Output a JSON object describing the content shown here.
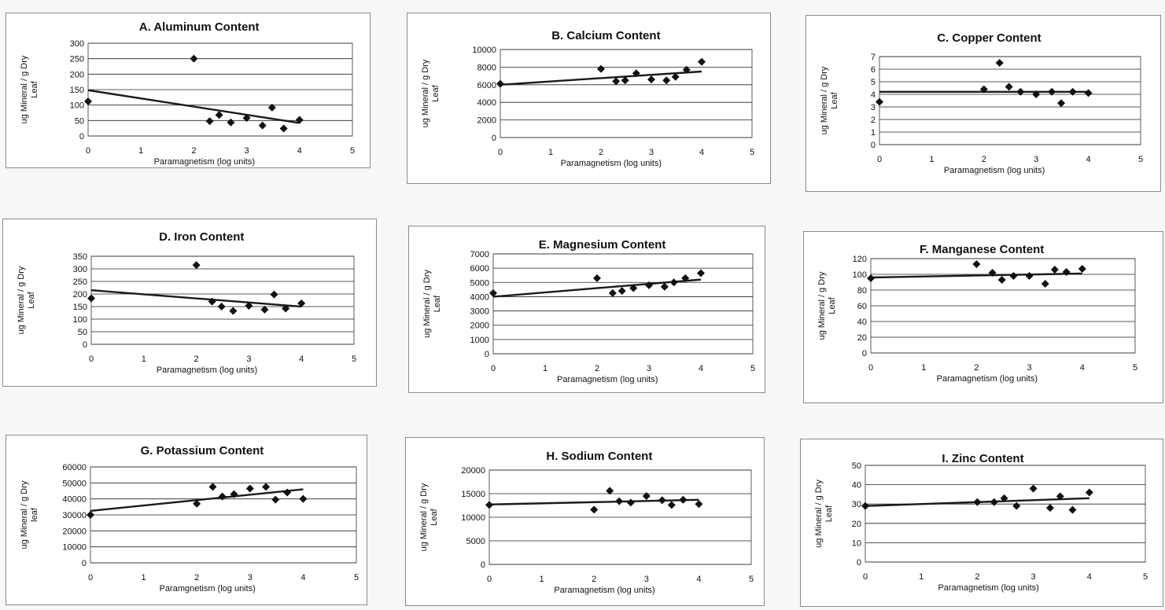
{
  "chart_data": [
    {
      "type": "scatter",
      "title": "A.  Aluminum Content",
      "xlabel": "Paramagnetism (log units)",
      "ylabel": [
        "ug Mineral / g Dry",
        "Leaf"
      ],
      "xlim": [
        0,
        5
      ],
      "ylim": [
        0,
        300
      ],
      "xticks": [
        "0",
        "1",
        "2",
        "3",
        "4",
        "5"
      ],
      "yticks": [
        "0",
        "50",
        "100",
        "150",
        "200",
        "250",
        "300"
      ],
      "points": [
        [
          0,
          112
        ],
        [
          2,
          250
        ],
        [
          2.3,
          48
        ],
        [
          2.48,
          68
        ],
        [
          2.7,
          44
        ],
        [
          3,
          58
        ],
        [
          3.3,
          34
        ],
        [
          3.48,
          92
        ],
        [
          3.7,
          24
        ],
        [
          4,
          52
        ]
      ],
      "trend": [
        [
          0,
          148
        ],
        [
          4,
          42
        ]
      ]
    },
    {
      "type": "scatter",
      "title": "B.  Calcium Content",
      "xlabel": "Paramagnetism (log units)",
      "ylabel": [
        "ug Mineral / g Dry",
        "Leaf"
      ],
      "xlim": [
        0,
        5
      ],
      "ylim": [
        0,
        10000
      ],
      "xticks": [
        "0",
        "1",
        "2",
        "3",
        "4",
        "5"
      ],
      "yticks": [
        "0",
        "2000",
        "4000",
        "6000",
        "8000",
        "10000"
      ],
      "points": [
        [
          0,
          6100
        ],
        [
          2,
          7800
        ],
        [
          2.3,
          6400
        ],
        [
          2.48,
          6500
        ],
        [
          2.7,
          7300
        ],
        [
          3,
          6600
        ],
        [
          3.3,
          6500
        ],
        [
          3.48,
          6900
        ],
        [
          3.7,
          7700
        ],
        [
          4,
          8600
        ]
      ],
      "trend": [
        [
          0,
          6000
        ],
        [
          4,
          7500
        ]
      ]
    },
    {
      "type": "scatter",
      "title": "C. Copper Content",
      "xlabel": "Paramagnetism (log units)",
      "ylabel": [
        "ug Mineral / g Dry",
        "Leaf"
      ],
      "xlim": [
        0,
        5
      ],
      "ylim": [
        0,
        7
      ],
      "xticks": [
        "0",
        "1",
        "2",
        "3",
        "4",
        "5"
      ],
      "yticks": [
        "0",
        "1",
        "2",
        "3",
        "4",
        "5",
        "6",
        "7"
      ],
      "points": [
        [
          0,
          3.4
        ],
        [
          2,
          4.4
        ],
        [
          2.3,
          6.5
        ],
        [
          2.48,
          4.6
        ],
        [
          2.7,
          4.2
        ],
        [
          3,
          4.0
        ],
        [
          3.3,
          4.2
        ],
        [
          3.48,
          3.3
        ],
        [
          3.7,
          4.2
        ],
        [
          4,
          4.1
        ]
      ],
      "trend": [
        [
          0,
          4.2
        ],
        [
          4,
          4.2
        ]
      ]
    },
    {
      "type": "scatter",
      "title": "D.  Iron Content",
      "xlabel": "Paramagnetism (log units)",
      "ylabel": [
        "ug Mineral / g Dry",
        "Leaf"
      ],
      "xlim": [
        0,
        5
      ],
      "ylim": [
        0,
        350
      ],
      "xticks": [
        "0",
        "1",
        "2",
        "3",
        "4",
        "5"
      ],
      "yticks": [
        "0",
        "50",
        "100",
        "150",
        "200",
        "250",
        "300",
        "350"
      ],
      "points": [
        [
          0,
          183
        ],
        [
          2,
          315
        ],
        [
          2.3,
          170
        ],
        [
          2.48,
          150
        ],
        [
          2.7,
          133
        ],
        [
          3,
          153
        ],
        [
          3.3,
          138
        ],
        [
          3.48,
          198
        ],
        [
          3.7,
          142
        ],
        [
          4,
          163
        ]
      ],
      "trend": [
        [
          0,
          215
        ],
        [
          4,
          150
        ]
      ]
    },
    {
      "type": "scatter",
      "title": "E. Magnesium Content",
      "xlabel": "Paramagnetism (log units)",
      "ylabel": [
        "ug Mineral / g Dry",
        "Leaf"
      ],
      "xlim": [
        0,
        5
      ],
      "ylim": [
        0,
        7000
      ],
      "xticks": [
        "0",
        "1",
        "2",
        "3",
        "4",
        "5"
      ],
      "yticks": [
        "0",
        "1000",
        "2000",
        "3000",
        "4000",
        "5000",
        "6000",
        "7000"
      ],
      "points": [
        [
          0,
          4250
        ],
        [
          2,
          5300
        ],
        [
          2.3,
          4250
        ],
        [
          2.48,
          4400
        ],
        [
          2.7,
          4600
        ],
        [
          3,
          4800
        ],
        [
          3.3,
          4700
        ],
        [
          3.48,
          5000
        ],
        [
          3.7,
          5300
        ],
        [
          4,
          5650
        ]
      ],
      "trend": [
        [
          0,
          4000
        ],
        [
          4,
          5200
        ]
      ]
    },
    {
      "type": "scatter",
      "title": "F. Manganese Content",
      "xlabel": "Paramagnetism (log units)",
      "ylabel": [
        "ug Mineral / g Dry",
        "Leaf"
      ],
      "xlim": [
        0,
        5
      ],
      "ylim": [
        0,
        120
      ],
      "xticks": [
        "0",
        "1",
        "2",
        "3",
        "4",
        "5"
      ],
      "yticks": [
        "0",
        "20",
        "40",
        "60",
        "80",
        "100",
        "120"
      ],
      "points": [
        [
          0,
          95
        ],
        [
          2,
          113
        ],
        [
          2.3,
          102
        ],
        [
          2.48,
          93
        ],
        [
          2.7,
          98
        ],
        [
          3,
          98
        ],
        [
          3.3,
          88
        ],
        [
          3.48,
          106
        ],
        [
          3.7,
          103
        ],
        [
          4,
          107
        ]
      ],
      "trend": [
        [
          0,
          96
        ],
        [
          4,
          101
        ]
      ]
    },
    {
      "type": "scatter",
      "title": "G. Potassium Content",
      "xlabel": "Paramgnetism (log units)",
      "ylabel": [
        "ug Mineral / g Dry",
        "leaf"
      ],
      "xlim": [
        0,
        5
      ],
      "ylim": [
        0,
        60000
      ],
      "xticks": [
        "0",
        "1",
        "2",
        "3",
        "4",
        "5"
      ],
      "yticks": [
        "0",
        "10000",
        "20000",
        "30000",
        "40000",
        "50000",
        "60000"
      ],
      "points": [
        [
          0,
          30000
        ],
        [
          2,
          37000
        ],
        [
          2.3,
          47500
        ],
        [
          2.48,
          41500
        ],
        [
          2.7,
          43000
        ],
        [
          3,
          46500
        ],
        [
          3.3,
          47500
        ],
        [
          3.48,
          39500
        ],
        [
          3.7,
          44000
        ],
        [
          4,
          40000
        ]
      ],
      "trend": [
        [
          0,
          32500
        ],
        [
          4,
          46000
        ]
      ]
    },
    {
      "type": "scatter",
      "title": "H. Sodium Content",
      "xlabel": "Paramagnetism (log units)",
      "ylabel": [
        "ug Mineral / g Dry",
        "Leaf"
      ],
      "xlim": [
        0,
        5
      ],
      "ylim": [
        0,
        20000
      ],
      "xticks": [
        "0",
        "1",
        "2",
        "3",
        "4",
        "5"
      ],
      "yticks": [
        "0",
        "5000",
        "10000",
        "15000",
        "20000"
      ],
      "points": [
        [
          0,
          12600
        ],
        [
          2,
          11600
        ],
        [
          2.3,
          15600
        ],
        [
          2.48,
          13400
        ],
        [
          2.7,
          13100
        ],
        [
          3,
          14500
        ],
        [
          3.3,
          13600
        ],
        [
          3.48,
          12600
        ],
        [
          3.7,
          13700
        ],
        [
          4,
          12800
        ]
      ],
      "trend": [
        [
          0,
          12700
        ],
        [
          4,
          13700
        ]
      ]
    },
    {
      "type": "scatter",
      "title": "I. Zinc Content",
      "xlabel": "Paramagnetism (log units)",
      "ylabel": [
        "ug Mineral / g Dry",
        "Leaf"
      ],
      "xlim": [
        0,
        5
      ],
      "ylim": [
        0,
        50
      ],
      "xticks": [
        "0",
        "1",
        "2",
        "3",
        "4",
        "5"
      ],
      "yticks": [
        "0",
        "10",
        "20",
        "30",
        "40",
        "50"
      ],
      "points": [
        [
          0,
          29
        ],
        [
          2,
          31
        ],
        [
          2.3,
          31
        ],
        [
          2.48,
          33
        ],
        [
          2.7,
          29
        ],
        [
          3,
          38
        ],
        [
          3.3,
          28
        ],
        [
          3.48,
          34
        ],
        [
          3.7,
          27
        ],
        [
          4,
          36
        ]
      ],
      "trend": [
        [
          0,
          29
        ],
        [
          4,
          33
        ]
      ]
    }
  ]
}
